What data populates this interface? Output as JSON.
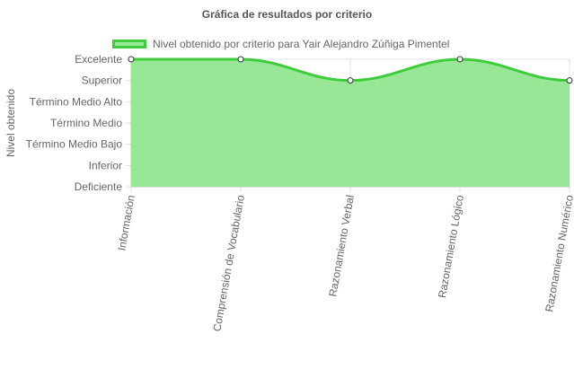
{
  "chart_data": {
    "type": "area",
    "title": "Gráfica de resultados por criterio",
    "ylabel": "Nivel obtenido",
    "xlabel": "",
    "categories": [
      "Información",
      "Comprensión de Vocabulario",
      "Razonamiento Verbal",
      "Razonamiento Lógico",
      "Razonamiento Numérico"
    ],
    "levels": [
      "Deficiente",
      "Inferior",
      "Término Medio Bajo",
      "Término Medio",
      "Término Medio Alto",
      "Superior",
      "Excelente"
    ],
    "ylim": [
      0,
      6
    ],
    "series": [
      {
        "name": "Nivel obtenido por criterio para Yair Alejandro Zúñiga Pimentel",
        "values": [
          6,
          6,
          5,
          6,
          5
        ]
      }
    ],
    "legend_position": "top",
    "grid": true,
    "colors": {
      "fill": "#98e796",
      "line": "#3fcc3b",
      "point_fill": "#ffffff",
      "point_stroke": "#333333"
    }
  }
}
